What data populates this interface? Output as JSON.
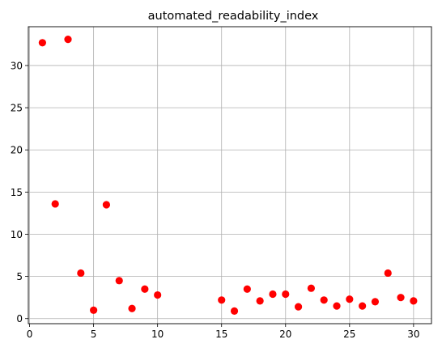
{
  "chart_data": {
    "type": "scatter",
    "title": "automated_readability_index",
    "xlabel": "",
    "ylabel": "",
    "xlim": [
      -0.1,
      31.4
    ],
    "ylim": [
      -0.6,
      34.6
    ],
    "x_ticks": [
      0,
      5,
      10,
      15,
      20,
      25,
      30
    ],
    "y_ticks": [
      0,
      5,
      10,
      15,
      20,
      25,
      30
    ],
    "grid": true,
    "marker_color": "#ff0000",
    "points": [
      {
        "x": 1,
        "y": 32.7
      },
      {
        "x": 2,
        "y": 13.6
      },
      {
        "x": 3,
        "y": 33.1
      },
      {
        "x": 4,
        "y": 5.4
      },
      {
        "x": 5,
        "y": 1.0
      },
      {
        "x": 6,
        "y": 13.5
      },
      {
        "x": 7,
        "y": 4.5
      },
      {
        "x": 8,
        "y": 1.2
      },
      {
        "x": 9,
        "y": 3.5
      },
      {
        "x": 10,
        "y": 2.8
      },
      {
        "x": 15,
        "y": 2.2
      },
      {
        "x": 16,
        "y": 0.9
      },
      {
        "x": 17,
        "y": 3.5
      },
      {
        "x": 18,
        "y": 2.1
      },
      {
        "x": 19,
        "y": 2.9
      },
      {
        "x": 20,
        "y": 2.9
      },
      {
        "x": 21,
        "y": 1.4
      },
      {
        "x": 22,
        "y": 3.6
      },
      {
        "x": 23,
        "y": 2.2
      },
      {
        "x": 24,
        "y": 1.5
      },
      {
        "x": 25,
        "y": 2.3
      },
      {
        "x": 26,
        "y": 1.5
      },
      {
        "x": 27,
        "y": 2.0
      },
      {
        "x": 28,
        "y": 5.4
      },
      {
        "x": 29,
        "y": 2.5
      },
      {
        "x": 30,
        "y": 2.1
      }
    ]
  }
}
